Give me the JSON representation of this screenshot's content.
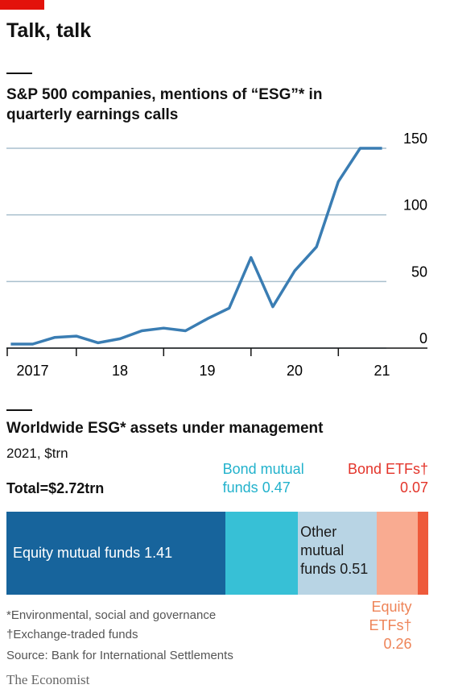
{
  "title": "Talk, talk",
  "chart_data": [
    {
      "type": "line",
      "title": "S&P 500 companies, mentions of “ESG”* in quarterly earnings calls",
      "x": [
        2017.25,
        2017.5,
        2017.75,
        2018,
        2018.25,
        2018.5,
        2018.75,
        2019,
        2019.25,
        2019.5,
        2019.75,
        2020,
        2020.25,
        2020.5,
        2020.75,
        2021,
        2021.25,
        2021.5
      ],
      "series": [
        {
          "name": "Mentions of ESG",
          "color": "#3a7db3",
          "values": [
            3,
            3,
            8,
            9,
            4,
            7,
            13,
            15,
            13,
            22,
            30,
            68,
            31,
            58,
            76,
            125,
            150,
            150
          ]
        }
      ],
      "xlim": [
        2017.2,
        2021.55
      ],
      "xticks": [
        {
          "value": 2017.5,
          "label": "2017"
        },
        {
          "value": 2018.5,
          "label": "18"
        },
        {
          "value": 2019.5,
          "label": "19"
        },
        {
          "value": 2020.5,
          "label": "20"
        },
        {
          "value": 2021.5,
          "label": "21"
        }
      ],
      "ylim": [
        0,
        150
      ],
      "yticks": [
        0,
        50,
        100,
        150
      ],
      "grid": true
    },
    {
      "type": "stacked-bar",
      "title": "Worldwide ESG* assets under management",
      "subtitle": "2021, $trn",
      "annotation": "Total=$2.72trn",
      "xlim": [
        0,
        2.72
      ],
      "series": [
        {
          "name": "Equity mutual funds",
          "color": "#17649c",
          "label_color": "#ffffff",
          "values": [
            1.41
          ]
        },
        {
          "name": "Bond mutual funds",
          "color": "#37c0d6",
          "label_color": "#22b2cc",
          "values": [
            0.47
          ]
        },
        {
          "name": "Other mutual funds",
          "color": "#b8d4e4",
          "label_color": "#1a1a1a",
          "values": [
            0.51
          ]
        },
        {
          "name": "Equity ETFs†",
          "color": "#f9ab91",
          "label_color": "#ee8458",
          "values": [
            0.26
          ]
        },
        {
          "name": "Bond ETFs†",
          "color": "#ee5a3b",
          "label_color": "#e3342a",
          "values": [
            0.07
          ]
        }
      ]
    }
  ],
  "footnotes": [
    "*Environmental, social and governance",
    "†Exchange-traded funds"
  ],
  "source": "Source: Bank for International Settlements",
  "brand": "The Economist"
}
